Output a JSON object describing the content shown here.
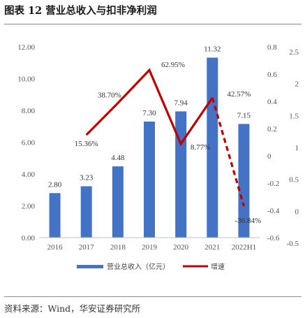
{
  "header": {
    "title": "图表 12 营业总收入与扣非净利润"
  },
  "footer": {
    "source": "资料来源：Wind，华安证券研究所"
  },
  "chart_data": {
    "type": "bar",
    "categories": [
      "2016",
      "2017",
      "2018",
      "2019",
      "2020",
      "2021",
      "2022H1"
    ],
    "series": [
      {
        "name": "营业总收入（亿元）",
        "type": "bar",
        "axis": "left",
        "color": "#4472C4",
        "values": [
          2.8,
          3.23,
          4.48,
          7.3,
          7.94,
          11.32,
          7.15
        ],
        "labels": [
          "2.80",
          "3.23",
          "4.48",
          "7.30",
          "7.94",
          "11.32",
          "7.15"
        ]
      },
      {
        "name": "增速",
        "type": "line",
        "axis": "right",
        "color": "#C00000",
        "values": [
          null,
          0.1536,
          0.387,
          0.6295,
          0.0877,
          0.4257,
          -0.3684
        ],
        "labels": [
          "",
          "15.36%",
          "38.70%",
          "62.95%",
          "8.77%",
          "42.57%",
          "-36.84%"
        ],
        "dashed_last_segment": true
      }
    ],
    "y_left": {
      "ylim": [
        0,
        12
      ],
      "ticks": [
        "0.00",
        "2.00",
        "4.00",
        "6.00",
        "8.00",
        "10.00",
        "12.00"
      ]
    },
    "y_right": {
      "ylim": [
        -0.6,
        0.8
      ],
      "ticks": [
        "-0.6",
        "-0.4",
        "-0.2",
        "0",
        "0.2",
        "0.4",
        "0.6",
        "0.8"
      ]
    },
    "y_right_outer": {
      "ticks": [
        "-0.5",
        "0",
        "0.5",
        "1",
        "1.5",
        "2",
        "2.5"
      ]
    },
    "legend_position": "bottom",
    "grid": false
  }
}
